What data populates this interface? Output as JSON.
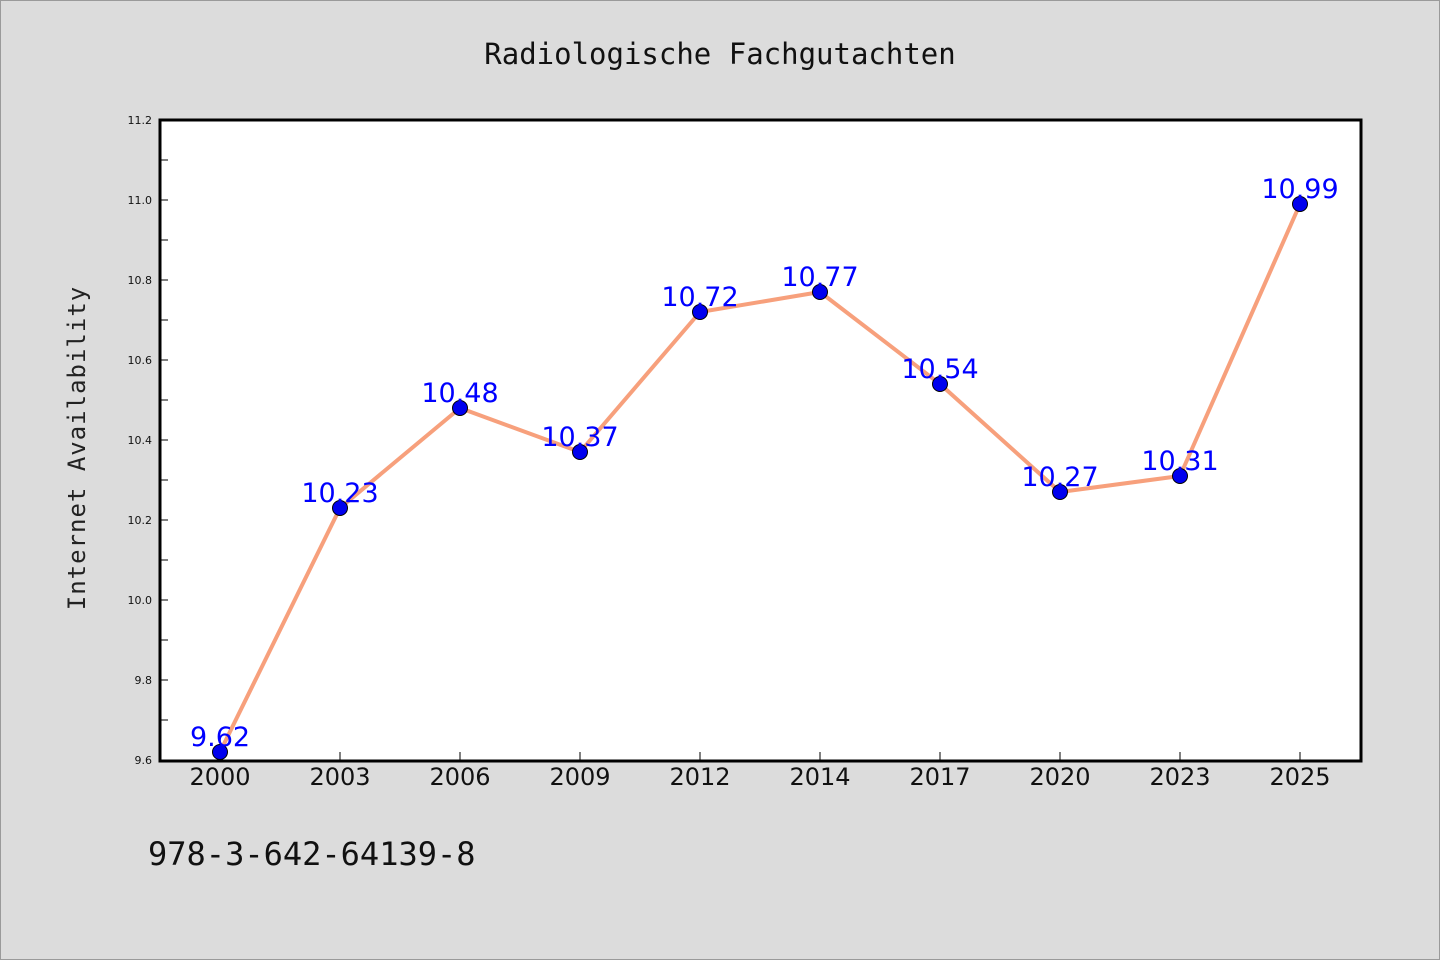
{
  "chart_data": {
    "type": "line",
    "title": "Radiologische Fachgutachten",
    "ylabel": "Internet Availability",
    "xlabel": "",
    "categories": [
      "2000",
      "2003",
      "2006",
      "2009",
      "2012",
      "2014",
      "2017",
      "2020",
      "2023",
      "2025"
    ],
    "series": [
      {
        "values": [
          9.62,
          10.23,
          10.48,
          10.37,
          10.72,
          10.77,
          10.54,
          10.27,
          10.31,
          10.99
        ],
        "line_color": "#f7a07c",
        "marker_color": "#0000ee"
      }
    ],
    "data_labels": [
      "9.62",
      "10.23",
      "10.48",
      "10.37",
      "10.72",
      "10.77",
      "10.54",
      "10.27",
      "10.31",
      "10.99"
    ],
    "ylim": [
      9.6,
      11.2
    ],
    "yticks": [
      9.6,
      9.8,
      10.0,
      10.2,
      10.4,
      10.6,
      10.8,
      11.0,
      11.2
    ],
    "ytick_labels": [
      "9.6",
      "9.8",
      "10.0",
      "10.2",
      "10.4",
      "10.6",
      "10.8",
      "11.0",
      "11.2"
    ],
    "grid": false,
    "legend": "none"
  },
  "annotation": {
    "isbn": "978-3-642-64139-8"
  }
}
